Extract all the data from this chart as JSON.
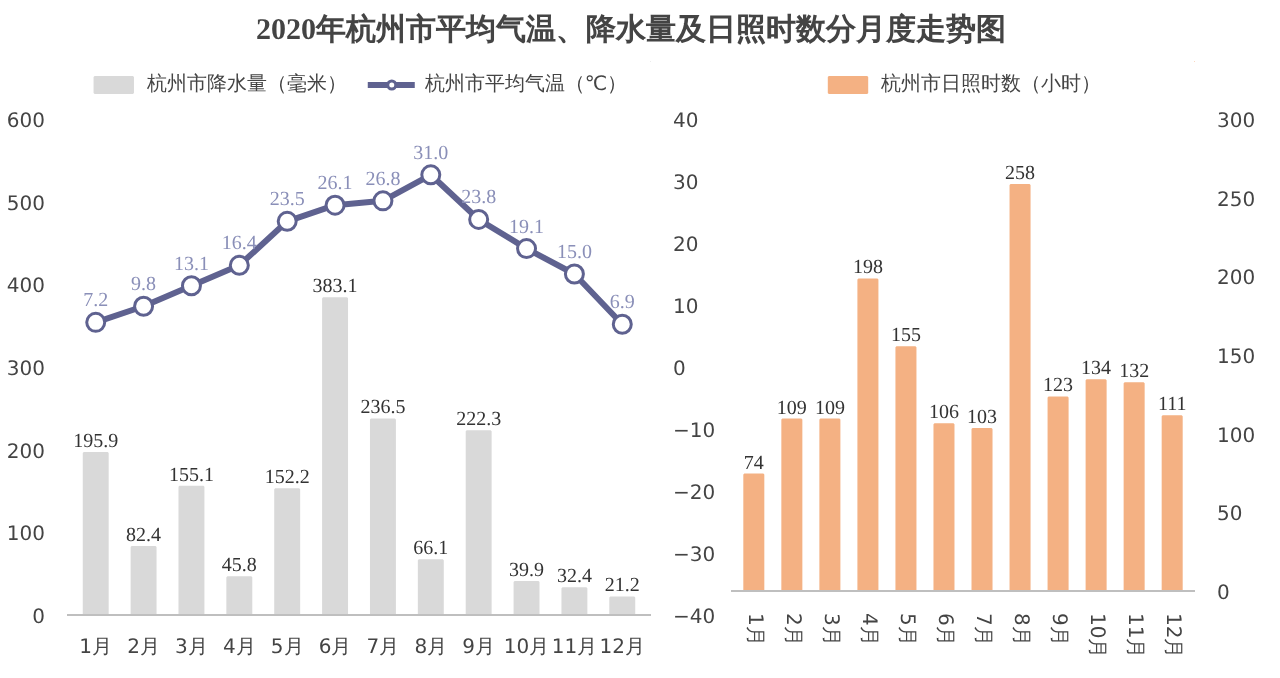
{
  "chart_data": [
    {
      "type": "bar",
      "title": "2020年杭州市平均气温、降水量及日照时数分月度走势图",
      "categories": [
        "1月",
        "2月",
        "3月",
        "4月",
        "5月",
        "6月",
        "7月",
        "8月",
        "9月",
        "10月",
        "11月",
        "12月"
      ],
      "series": [
        {
          "name": "杭州市降水量（毫米）",
          "type": "bar",
          "color": "#d9d9d9",
          "values": [
            195.9,
            82.4,
            155.1,
            45.8,
            152.2,
            383.1,
            236.5,
            66.1,
            222.3,
            39.9,
            32.4,
            21.2
          ]
        },
        {
          "name": "杭州市平均气温（℃）",
          "type": "line",
          "axis": "y2",
          "color": "#5f6290",
          "marker": "circle",
          "values": [
            7.2,
            9.8,
            13.1,
            16.4,
            23.5,
            26.1,
            26.8,
            31.0,
            23.8,
            19.1,
            15.0,
            6.9
          ],
          "value_labels": [
            "7.2",
            "9.8",
            "13.1",
            "16.4",
            "23.5",
            "26.1",
            "26.8",
            "31.0",
            "23.8",
            "19.1",
            "15.0",
            "6.9"
          ]
        }
      ],
      "ylim": [
        0,
        600
      ],
      "yticks": [
        0,
        100,
        200,
        300,
        400,
        500,
        600
      ],
      "y2lim": [
        -40,
        40
      ],
      "y2ticks": [
        -40,
        -30,
        -20,
        -10,
        0,
        10,
        20,
        30,
        40
      ],
      "data_labels": true,
      "grid": false,
      "legend": "top"
    },
    {
      "type": "bar",
      "categories": [
        "1月",
        "2月",
        "3月",
        "4月",
        "5月",
        "6月",
        "7月",
        "8月",
        "9月",
        "10月",
        "11月",
        "12月"
      ],
      "series": [
        {
          "name": "杭州市日照时数（小时）",
          "color": "#f4b183",
          "axis": "y2",
          "values": [
            74,
            109,
            109,
            198,
            155,
            106,
            103,
            258,
            123,
            134,
            132,
            111
          ]
        }
      ],
      "y2lim": [
        0,
        300
      ],
      "y2ticks": [
        0,
        50,
        100,
        150,
        200,
        250,
        300
      ],
      "data_labels": true,
      "grid": false,
      "legend": "top"
    }
  ]
}
